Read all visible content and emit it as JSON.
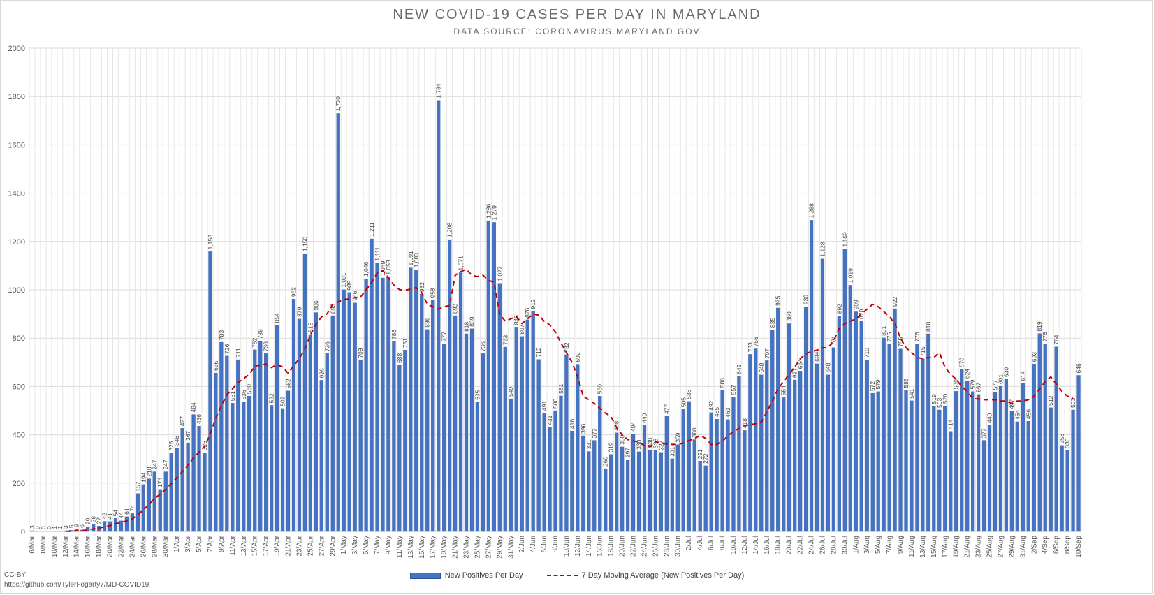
{
  "title": "NEW COVID-19 CASES PER DAY IN MARYLAND",
  "subtitle": "DATA SOURCE: CORONAVIRUS.MARYLAND.GOV",
  "credit": {
    "license": "CC-BY",
    "url": "https://github.com/TylerFogarty7/MD-COVID19"
  },
  "colors": {
    "bars": "#4472c4",
    "average": "#c00000",
    "grid": "#d9d9d9",
    "text": "#595959"
  },
  "chart_data": {
    "type": "bar",
    "title": "NEW COVID-19 CASES PER DAY IN MARYLAND",
    "subtitle": "DATA SOURCE: CORONAVIRUS.MARYLAND.GOV",
    "xlabel": "",
    "ylabel": "",
    "ylim": [
      0,
      2000
    ],
    "yticks": [
      0,
      200,
      400,
      600,
      800,
      1000,
      1200,
      1400,
      1600,
      1800,
      2000
    ],
    "grid": true,
    "legend_position": "bottom",
    "legend": [
      "New Positives Per Day",
      "7 Day Moving Average (New Positives Per Day)"
    ],
    "x_tick_labels": [
      "6/Mar",
      "8/Mar",
      "10/Mar",
      "12/Mar",
      "14/Mar",
      "16/Mar",
      "18/Mar",
      "20/Mar",
      "22/Mar",
      "24/Mar",
      "26/Mar",
      "28/Mar",
      "30/Mar",
      "1/Apr",
      "3/Apr",
      "5/Apr",
      "7/Apr",
      "9/Apr",
      "11/Apr",
      "13/Apr",
      "15/Apr",
      "17/Apr",
      "19/Apr",
      "21/Apr",
      "23/Apr",
      "25/Apr",
      "27/Apr",
      "29/Apr",
      "1/May",
      "3/May",
      "5/May",
      "7/May",
      "9/May",
      "11/May",
      "13/May",
      "15/May",
      "17/May",
      "19/May",
      "21/May",
      "23/May",
      "25/May",
      "27/May",
      "29/May",
      "31/May",
      "2/Jun",
      "4/Jun",
      "6/Jun",
      "8/Jun",
      "10/Jun",
      "12/Jun",
      "14/Jun",
      "16/Jun",
      "18/Jun",
      "20/Jun",
      "22/Jun",
      "24/Jun",
      "26/Jun",
      "28/Jun",
      "30/Jun",
      "2/Jul",
      "4/Jul",
      "6/Jul",
      "8/Jul",
      "10/Jul",
      "12/Jul",
      "14/Jul",
      "16/Jul",
      "18/Jul",
      "20/Jul",
      "22/Jul",
      "24/Jul",
      "26/Jul",
      "28/Jul",
      "30/Jul",
      "1/Aug",
      "3/Aug",
      "5/Aug",
      "7/Aug",
      "9/Aug",
      "11/Aug",
      "13/Aug",
      "15/Aug",
      "17/Aug",
      "19/Aug",
      "21/Aug",
      "23/Aug",
      "25/Aug",
      "27/Aug",
      "29/Aug",
      "31/Aug",
      "2/Sep",
      "4/Sep",
      "6/Sep",
      "8/Sep",
      "10/Sep"
    ],
    "series": [
      {
        "name": "New Positives Per Day",
        "type": "bar",
        "values": [
          3,
          0,
          0,
          0,
          1,
          1,
          3,
          5,
          9,
          6,
          20,
          28,
          22,
          42,
          41,
          54,
          44,
          61,
          74,
          157,
          194,
          218,
          247,
          174,
          247,
          325,
          346,
          427,
          367,
          484,
          436,
          326,
          1158,
          656,
          783,
          726,
          531,
          711,
          536,
          560,
          752,
          788,
          736,
          522,
          854,
          509,
          582,
          962,
          879,
          1150,
          815,
          906,
          626,
          736,
          893,
          1730,
          1001,
          989,
          946,
          709,
          1046,
          1211,
          1111,
          1049,
          1053,
          786,
          688,
          751,
          1091,
          1083,
          982,
          836,
          958,
          1784,
          777,
          1208,
          893,
          1071,
          818,
          839,
          535,
          736,
          1286,
          1279,
          1027,
          763,
          549,
          846,
          807,
          876,
          912,
          712,
          491,
          431,
          500,
          561,
          732,
          416,
          692,
          396,
          331,
          377,
          560,
          260,
          319,
          408,
          350,
          297,
          404,
          330,
          440,
          338,
          335,
          327,
          477,
          301,
          359,
          505,
          538,
          380,
          291,
          272,
          492,
          465,
          586,
          463,
          557,
          642,
          418,
          733,
          756,
          648,
          707,
          835,
          925,
          554,
          860,
          627,
          664,
          930,
          1288,
          694,
          1128,
          648,
          761,
          892,
          1169,
          1019,
          909,
          870,
          710,
          572,
          579,
          801,
          775,
          922,
          755,
          585,
          541,
          776,
          715,
          818,
          519,
          503,
          520,
          414,
          580,
          670,
          624,
          579,
          567,
          377,
          440,
          577,
          601,
          630,
          497,
          454,
          614,
          456,
          693,
          819,
          776,
          512,
          764,
          356,
          336,
          503,
          646
        ]
      },
      {
        "name": "7 Day Moving Average (New Positives Per Day)",
        "type": "line",
        "style": "dashed",
        "values": [
          null,
          null,
          null,
          null,
          null,
          null,
          1,
          1,
          3,
          4,
          6,
          10,
          14,
          19,
          24,
          32,
          37,
          44,
          52,
          69,
          89,
          112,
          137,
          154,
          174,
          198,
          222,
          248,
          276,
          304,
          329,
          351,
          403,
          470,
          520,
          566,
          590,
          616,
          633,
          649,
          684,
          688,
          693,
          678,
          691,
          680,
          655,
          685,
          716,
          754,
          814,
          858,
          888,
          901,
          940,
          950,
          960,
          962,
          968,
          970,
          1000,
          1030,
          1070,
          1080,
          1050,
          1020,
          1001,
          998,
          1003,
          1009,
          988,
          940,
          930,
          920,
          930,
          935,
          1060,
          1075,
          1085,
          1060,
          1055,
          1060,
          1040,
          1030,
          900,
          870,
          880,
          890,
          860,
          880,
          900,
          895,
          870,
          855,
          826,
          780,
          740,
          700,
          640,
          560,
          545,
          530,
          510,
          490,
          475,
          430,
          400,
          380,
          375,
          370,
          355,
          350,
          372,
          365,
          362,
          360,
          360,
          366,
          376,
          384,
          398,
          385,
          360,
          360,
          373,
          396,
          414,
          426,
          438,
          442,
          446,
          452,
          495,
          540,
          590,
          620,
          650,
          680,
          715,
          735,
          745,
          750,
          760,
          760,
          790,
          840,
          860,
          870,
          880,
          900,
          920,
          940,
          930,
          910,
          890,
          860,
          800,
          760,
          740,
          720,
          715,
          720,
          720,
          740,
          680,
          650,
          630,
          600,
          580,
          550,
          548,
          545,
          545,
          545,
          540,
          540,
          530,
          540,
          540,
          545,
          560,
          590,
          620,
          640,
          610,
          580,
          560,
          550
        ]
      }
    ]
  }
}
